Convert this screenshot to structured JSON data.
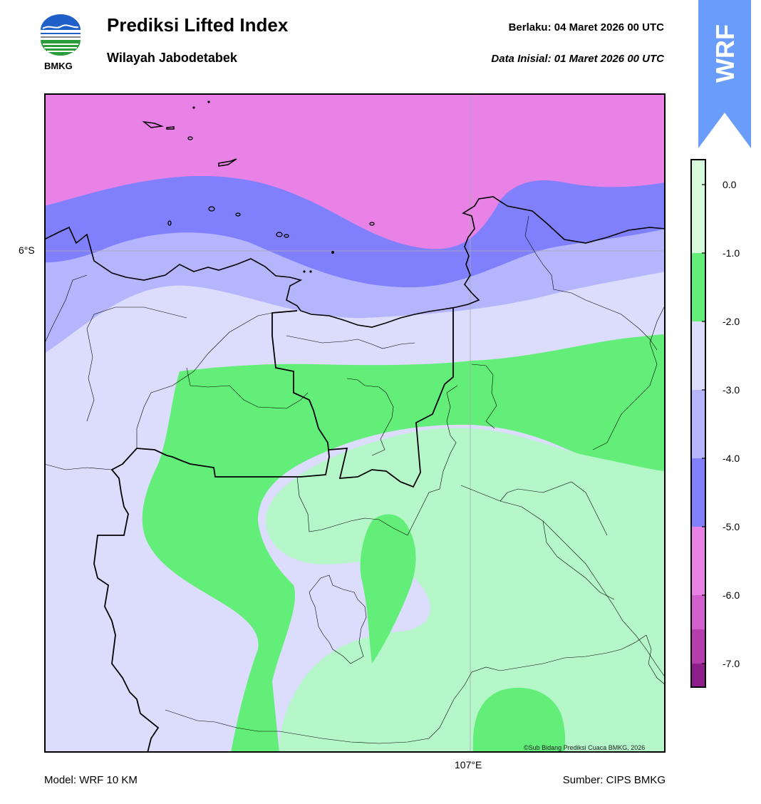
{
  "header": {
    "title": "Prediksi Lifted Index",
    "subtitle": "Wilayah Jabodetabek",
    "valid_label": "Berlaku:  04 Maret 2026 00 UTC",
    "init_label": "Data Inisial:  01 Maret 2026 00 UTC",
    "logo_text": "BMKG",
    "badge_text": "WRF"
  },
  "map": {
    "lat_label": "6°S",
    "lon_label": "107°E",
    "copyright": "©Sub Bidang Prediksi Cuaca BMKG, 2026"
  },
  "footer": {
    "model": "Model: WRF 10 KM",
    "source": "Sumber: CIPS BMKG"
  },
  "legend": {
    "ticks": [
      "0.0",
      "-1.0",
      "-2.0",
      "-3.0",
      "-4.0",
      "-5.0",
      "-6.0",
      "-7.0"
    ],
    "colors": [
      "#d8fbdc",
      "#b5f7c9",
      "#63ee79",
      "#dcdcfd",
      "#b5b5fd",
      "#8080fd",
      "#e882e6",
      "#d25fce",
      "#b63dae",
      "#8e1f8a"
    ]
  },
  "colors": {
    "li_-1_0": "#b5f7c9",
    "li_-2_-1": "#63ee79",
    "li_-3_-2": "#dcdcfd",
    "li_-4_-3": "#b5b5fd",
    "li_-5_-4": "#8080fd",
    "li_-6_-5": "#e882e6",
    "badge": "#6a9dfb"
  }
}
